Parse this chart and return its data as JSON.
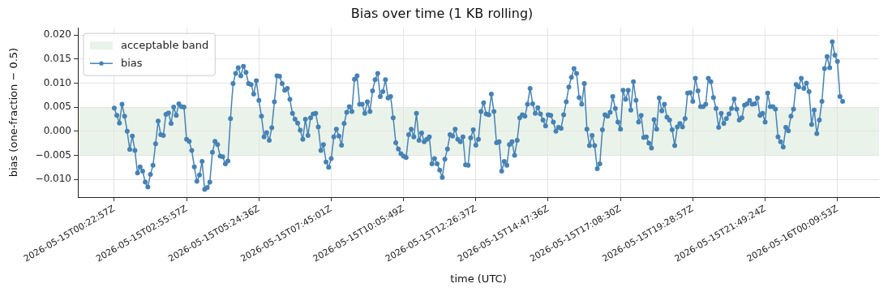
{
  "chart_data": {
    "type": "line",
    "title": "Bias over time (1 KB rolling)",
    "xlabel": "time (UTC)",
    "ylabel": "bias (one-fraction − 0.5)",
    "series": [
      {
        "name": "bias",
        "color": "#4682b4",
        "values": [
          0.0048,
          0.0033,
          0.0017,
          0.0056,
          0.0031,
          0.0,
          -0.0038,
          -0.001,
          -0.004,
          -0.0087,
          -0.0074,
          -0.0083,
          -0.0106,
          -0.0116,
          -0.009,
          -0.0071,
          -0.0026,
          0.0021,
          -0.0007,
          -0.0009,
          0.0035,
          0.0038,
          0.0016,
          0.005,
          0.0033,
          0.0057,
          0.0051,
          0.005,
          -0.0017,
          -0.0021,
          -0.004,
          -0.0074,
          -0.0104,
          -0.0091,
          -0.0063,
          -0.0121,
          -0.0117,
          -0.0106,
          -0.0044,
          -0.0021,
          -0.0028,
          -0.0052,
          -0.0053,
          -0.0068,
          -0.0062,
          0.0026,
          0.0099,
          0.012,
          0.0132,
          0.0115,
          0.0135,
          0.0122,
          0.0099,
          0.0097,
          0.0077,
          0.0105,
          0.0064,
          0.0031,
          -0.0012,
          -0.0003,
          -0.0019,
          0.0007,
          0.0061,
          0.0115,
          0.0114,
          0.0099,
          0.0085,
          0.0089,
          0.0066,
          0.0037,
          0.0025,
          0.0017,
          0.0002,
          -0.0017,
          0.0025,
          -0.0009,
          0.0028,
          0.0036,
          0.0037,
          0.0009,
          -0.004,
          -0.0028,
          -0.0064,
          -0.0075,
          -0.0057,
          -0.0012,
          0.0004,
          -0.001,
          -0.0029,
          0.0016,
          0.0039,
          0.0051,
          0.0041,
          0.0108,
          0.0115,
          0.0056,
          0.0056,
          0.0037,
          0.0061,
          0.0041,
          0.0084,
          0.0107,
          0.012,
          0.0072,
          0.0082,
          0.0107,
          0.0069,
          0.0072,
          0.0028,
          -0.0024,
          -0.0037,
          -0.0047,
          -0.0052,
          -0.0055,
          -0.0007,
          0.0004,
          -0.0012,
          0.0037,
          -0.0019,
          -0.0004,
          -0.0022,
          -0.0017,
          -0.0012,
          -0.0068,
          -0.0057,
          -0.0068,
          -0.0081,
          -0.0096,
          -0.0058,
          -0.0037,
          -0.0007,
          -0.001,
          0.0004,
          -0.0017,
          -0.0022,
          -0.0012,
          -0.007,
          -0.0071,
          -0.0014,
          0.0003,
          -0.0029,
          -0.0017,
          0.0041,
          0.0059,
          0.0036,
          0.0034,
          0.0077,
          0.0041,
          -0.0024,
          -0.0022,
          -0.0083,
          -0.0063,
          -0.0071,
          -0.0028,
          -0.0022,
          -0.005,
          -0.0019,
          0.0028,
          0.0034,
          0.0031,
          0.0056,
          0.0089,
          0.0057,
          0.0037,
          0.0049,
          0.0036,
          0.0023,
          0.0011,
          0.0034,
          0.0033,
          0.0019,
          0.0,
          0.0008,
          0.0006,
          0.0034,
          0.0061,
          0.0092,
          0.0112,
          0.013,
          0.012,
          0.007,
          0.0056,
          0.0099,
          0.0004,
          -0.003,
          -0.0009,
          -0.003,
          -0.0078,
          -0.0068,
          0.0003,
          0.0034,
          0.0031,
          0.0039,
          0.0072,
          0.0047,
          0.0019,
          0.0004,
          0.0085,
          0.0066,
          0.0085,
          0.0044,
          0.0103,
          0.0064,
          0.0019,
          0.0033,
          -0.0013,
          -0.0012,
          -0.0025,
          -0.0035,
          0.0024,
          0.0004,
          0.0069,
          0.0042,
          0.0056,
          0.0029,
          0.0023,
          0.0003,
          -0.003,
          0.0009,
          0.0016,
          0.0009,
          0.0026,
          0.0079,
          0.008,
          0.0062,
          0.011,
          0.0084,
          0.0051,
          0.0051,
          0.0056,
          0.011,
          0.0103,
          0.007,
          0.0047,
          0.0008,
          0.0037,
          0.0016,
          0.0026,
          0.0036,
          0.0047,
          0.0067,
          0.0046,
          0.0023,
          0.0028,
          0.0054,
          0.0057,
          0.0064,
          0.0056,
          0.0057,
          0.0069,
          0.0033,
          0.0037,
          0.0019,
          0.0079,
          0.0051,
          0.0051,
          0.0046,
          -0.0012,
          -0.0022,
          -0.0033,
          0.0008,
          0.0001,
          0.0031,
          0.0046,
          0.0097,
          0.0092,
          0.011,
          0.0089,
          0.01,
          0.0082,
          0.0014,
          0.0044,
          -0.0005,
          0.0023,
          0.0062,
          0.013,
          0.0155,
          0.0132,
          0.0186,
          0.0158,
          0.0145,
          0.0072,
          0.0062
        ]
      }
    ],
    "categories": [
      "2026-05-15T00:22:57Z",
      null,
      null,
      null,
      null,
      null,
      null,
      null,
      null,
      null,
      null,
      null,
      null,
      null,
      null,
      null,
      null,
      null,
      null,
      null,
      null,
      null,
      null,
      null,
      null,
      null,
      null,
      null,
      "2026-05-15T02:55:57Z",
      null,
      null,
      null,
      null,
      null,
      null,
      null,
      null,
      null,
      null,
      null,
      null,
      null,
      null,
      null,
      null,
      null,
      null,
      null,
      null,
      null,
      null,
      null,
      null,
      null,
      null,
      null,
      "2026-05-15T05:24:36Z",
      null,
      null,
      null,
      null,
      null,
      null,
      null,
      null,
      null,
      null,
      null,
      null,
      null,
      null,
      null,
      null,
      null,
      null,
      null,
      null,
      null,
      null,
      null,
      null,
      null,
      null,
      null,
      "2026-05-15T07:45:01Z",
      null,
      null,
      null,
      null,
      null,
      null,
      null,
      null,
      null,
      null,
      null,
      null,
      null,
      null,
      null,
      null,
      null,
      null,
      null,
      null,
      null,
      null,
      null,
      null,
      null,
      null,
      null,
      "2026-05-15T10:05:49Z",
      null,
      null,
      null,
      null,
      null,
      null,
      null,
      null,
      null,
      null,
      null,
      null,
      null,
      null,
      null,
      null,
      null,
      null,
      null,
      null,
      null,
      null,
      null,
      null,
      null,
      null,
      null,
      "2026-05-15T12:26:37Z",
      null,
      null,
      null,
      null,
      null,
      null,
      null,
      null,
      null,
      null,
      null,
      null,
      null,
      null,
      null,
      null,
      null,
      null,
      null,
      null,
      null,
      null,
      null,
      null,
      null,
      null,
      null,
      "2026-05-15T14:47:36Z",
      null,
      null,
      null,
      null,
      null,
      null,
      null,
      null,
      null,
      null,
      null,
      null,
      null,
      null,
      null,
      null,
      null,
      null,
      null,
      null,
      null,
      null,
      null,
      null,
      null,
      null,
      null,
      "2026-05-15T17:08:30Z",
      null,
      null,
      null,
      null,
      null,
      null,
      null,
      null,
      null,
      null,
      null,
      null,
      null,
      null,
      null,
      null,
      null,
      null,
      null,
      null,
      null,
      null,
      null,
      null,
      null,
      null,
      null,
      "2026-05-15T19:28:57Z",
      null,
      null,
      null,
      null,
      null,
      null,
      null,
      null,
      null,
      null,
      null,
      null,
      null,
      null,
      null,
      null,
      null,
      null,
      null,
      null,
      null,
      null,
      null,
      null,
      null,
      null,
      null,
      "2026-05-15T21:49:24Z",
      null,
      null,
      null,
      null,
      null,
      null,
      null,
      null,
      null,
      null,
      null,
      null,
      null,
      null,
      null,
      null,
      null,
      null,
      null,
      null,
      null,
      null,
      null,
      null,
      null,
      null,
      null,
      "2026-05-16T00:09:53Z",
      null,
      null
    ],
    "ylim": [
      -0.0137,
      0.0215
    ],
    "yticks": [
      {
        "value": -0.01,
        "label": "−0.010"
      },
      {
        "value": -0.005,
        "label": "−0.005"
      },
      {
        "value": 0,
        "label": "0.000"
      },
      {
        "value": 0.005,
        "label": "0.005"
      },
      {
        "value": 0.01,
        "label": "0.010"
      },
      {
        "value": 0.015,
        "label": "0.015"
      },
      {
        "value": 0.02,
        "label": "0.020"
      }
    ],
    "bands": [
      {
        "axis": "y",
        "from": -0.005,
        "to": 0.005,
        "label": "acceptable band",
        "color": "#eaf3ea"
      }
    ],
    "grid": true,
    "legend": "top left",
    "marker": "circle",
    "line_style": "solid"
  }
}
